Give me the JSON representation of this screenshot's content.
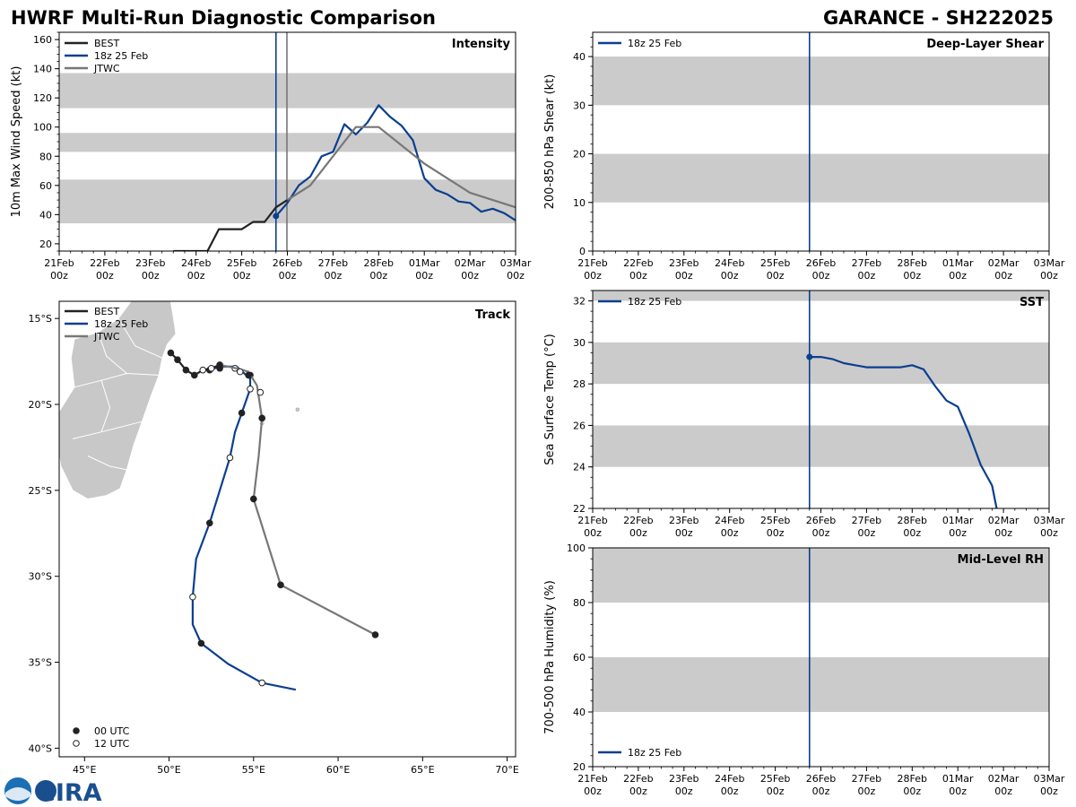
{
  "header": {
    "left_title": "HWRF Multi-Run Diagnostic Comparison",
    "right_title": "GARANCE - SH222025"
  },
  "logo": {
    "text": "CIRA"
  },
  "colors": {
    "best": "#222222",
    "model": "#0b3f8f",
    "jtwc": "#777777",
    "band": "#cbcbcb",
    "land": "#c8c8c8"
  },
  "time_axis": {
    "days": [
      "21Feb",
      "22Feb",
      "23Feb",
      "24Feb",
      "25Feb",
      "26Feb",
      "27Feb",
      "28Feb",
      "01Mar",
      "02Mar",
      "03Mar"
    ],
    "sub": "00z",
    "range_days": [
      0,
      10
    ],
    "init_line_day": 4.75,
    "jtwc_line_day": 4.99
  },
  "chart_data": [
    {
      "type": "line",
      "id": "intensity",
      "title": "Intensity",
      "ylabel": "10m Max Wind Speed (kt)",
      "ylim": [
        15,
        165
      ],
      "yticks": [
        20,
        40,
        60,
        80,
        100,
        120,
        140,
        160
      ],
      "bands": [
        [
          34,
          64
        ],
        [
          83,
          96
        ],
        [
          113,
          137
        ]
      ],
      "legend": [
        "BEST",
        "18z 25 Feb",
        "JTWC"
      ],
      "series": [
        {
          "name": "BEST",
          "color": "best",
          "x": [
            2.5,
            3.25,
            3.5,
            4.0,
            4.25,
            4.5,
            4.75,
            5.0
          ],
          "y": [
            15,
            15,
            30,
            30,
            35,
            35,
            45,
            50
          ]
        },
        {
          "name": "18z 25 Feb",
          "color": "model",
          "marker_first": true,
          "x": [
            4.75,
            5.0,
            5.25,
            5.5,
            5.75,
            6.0,
            6.25,
            6.5,
            6.75,
            7.0,
            7.25,
            7.5,
            7.75,
            8.0,
            8.25,
            8.5,
            8.75,
            9.0,
            9.25,
            9.5,
            9.75,
            10.0
          ],
          "y": [
            39,
            48,
            60,
            66,
            80,
            83,
            102,
            95,
            103,
            115,
            107,
            101,
            91,
            65,
            57,
            54,
            49,
            48,
            42,
            44,
            41,
            36
          ]
        },
        {
          "name": "JTWC",
          "color": "jtwc",
          "x": [
            5.0,
            5.5,
            6.0,
            6.5,
            7.0,
            8.0,
            9.0,
            10.0
          ],
          "y": [
            50,
            60,
            80,
            100,
            100,
            75,
            55,
            45
          ]
        }
      ]
    },
    {
      "type": "line",
      "id": "shear",
      "title": "Deep-Layer Shear",
      "ylabel": "200-850 hPa Shear (kt)",
      "ylim": [
        0,
        45
      ],
      "yticks": [
        0,
        10,
        20,
        30,
        40
      ],
      "bands": [
        [
          10,
          20
        ],
        [
          30,
          40
        ]
      ],
      "legend": [
        "18z 25 Feb"
      ],
      "series": []
    },
    {
      "type": "line",
      "id": "sst",
      "title": "SST",
      "ylabel": "Sea Surface Temp (°C)",
      "ylim": [
        22,
        32.5
      ],
      "yticks": [
        22,
        24,
        26,
        28,
        30,
        32
      ],
      "bands": [
        [
          24,
          26
        ],
        [
          28,
          30
        ],
        [
          32,
          34
        ]
      ],
      "legend": [
        "18z 25 Feb"
      ],
      "series": [
        {
          "name": "18z 25 Feb",
          "color": "model",
          "marker_first": true,
          "x": [
            4.75,
            5.0,
            5.25,
            5.5,
            5.75,
            6.0,
            6.25,
            6.5,
            6.75,
            7.0,
            7.25,
            7.5,
            7.75,
            8.0,
            8.25,
            8.5,
            8.75,
            8.85
          ],
          "y": [
            29.3,
            29.3,
            29.2,
            29.0,
            28.9,
            28.8,
            28.8,
            28.8,
            28.8,
            28.9,
            28.7,
            27.9,
            27.2,
            26.9,
            25.6,
            24.1,
            23.1,
            22.0
          ]
        }
      ]
    },
    {
      "type": "line",
      "id": "rh",
      "title": "Mid-Level RH",
      "ylabel": "700-500 hPa Humidity (%)",
      "ylim": [
        20,
        100
      ],
      "yticks": [
        20,
        40,
        60,
        80,
        100
      ],
      "bands": [
        [
          40,
          60
        ],
        [
          80,
          100
        ]
      ],
      "legend": [
        "18z 25 Feb"
      ],
      "series": []
    },
    {
      "type": "scatter",
      "id": "track",
      "title": "Track",
      "xlim": [
        43.5,
        70.5
      ],
      "ylim": [
        -40.5,
        -14.0
      ],
      "xticks": [
        45,
        50,
        55,
        60,
        65,
        70
      ],
      "xtick_labels": [
        "45°E",
        "50°E",
        "55°E",
        "60°E",
        "65°E",
        "70°E"
      ],
      "yticks": [
        -15,
        -20,
        -25,
        -30,
        -35,
        -40
      ],
      "ytick_labels": [
        "15°S",
        "20°S",
        "25°S",
        "30°S",
        "35°S",
        "40°S"
      ],
      "legend": [
        "BEST",
        "18z 25 Feb",
        "JTWC"
      ],
      "marker_legend": [
        "00 UTC",
        "12 UTC"
      ],
      "series": [
        {
          "name": "BEST",
          "color": "best",
          "points": [
            [
              50.1,
              -17.0
            ],
            [
              50.5,
              -17.4
            ],
            [
              51.0,
              -18.0
            ],
            [
              51.5,
              -18.3
            ],
            [
              52.0,
              -18.0
            ],
            [
              52.5,
              -17.9
            ],
            [
              53.0,
              -17.7
            ]
          ],
          "filled": [
            true,
            true,
            true,
            true,
            false,
            false,
            true
          ]
        },
        {
          "name": "18z 25 Feb",
          "color": "model",
          "points": [
            [
              52.4,
              -18.0
            ],
            [
              53.0,
              -17.8
            ],
            [
              54.0,
              -17.8
            ],
            [
              54.8,
              -18.5
            ],
            [
              54.8,
              -19.1
            ],
            [
              54.3,
              -20.5
            ],
            [
              53.9,
              -21.6
            ],
            [
              53.6,
              -23.1
            ],
            [
              53.0,
              -25.0
            ],
            [
              52.4,
              -26.9
            ],
            [
              51.6,
              -29.0
            ],
            [
              51.4,
              -31.2
            ],
            [
              51.4,
              -32.8
            ],
            [
              51.9,
              -33.9
            ],
            [
              53.5,
              -35.1
            ],
            [
              55.5,
              -36.2
            ],
            [
              57.5,
              -36.6
            ]
          ],
          "marks": [
            [
              52.4,
              -18.0,
              true
            ],
            [
              53.0,
              -17.9,
              true
            ],
            [
              53.9,
              -17.9,
              false
            ],
            [
              54.8,
              -18.3,
              true
            ],
            [
              54.8,
              -19.1,
              false
            ],
            [
              54.3,
              -20.5,
              true
            ],
            [
              53.6,
              -23.1,
              false
            ],
            [
              52.4,
              -26.9,
              true
            ],
            [
              51.4,
              -31.2,
              false
            ],
            [
              51.9,
              -33.9,
              true
            ],
            [
              55.5,
              -36.2,
              false
            ]
          ]
        },
        {
          "name": "JTWC",
          "color": "jtwc",
          "points": [
            [
              53.0,
              -17.7
            ],
            [
              54.0,
              -17.9
            ],
            [
              54.7,
              -18.1
            ],
            [
              55.2,
              -18.9
            ],
            [
              55.5,
              -20.8
            ],
            [
              55.3,
              -23.0
            ],
            [
              55.0,
              -25.5
            ],
            [
              56.6,
              -30.5
            ],
            [
              62.2,
              -33.4
            ]
          ],
          "marks": [
            [
              54.2,
              -18.1,
              false
            ],
            [
              54.7,
              -18.3,
              true
            ],
            [
              55.4,
              -19.3,
              false
            ],
            [
              55.5,
              -20.8,
              true
            ],
            [
              55.0,
              -25.5,
              true
            ],
            [
              56.6,
              -30.5,
              true
            ],
            [
              62.2,
              -33.4,
              true
            ]
          ]
        }
      ]
    }
  ]
}
